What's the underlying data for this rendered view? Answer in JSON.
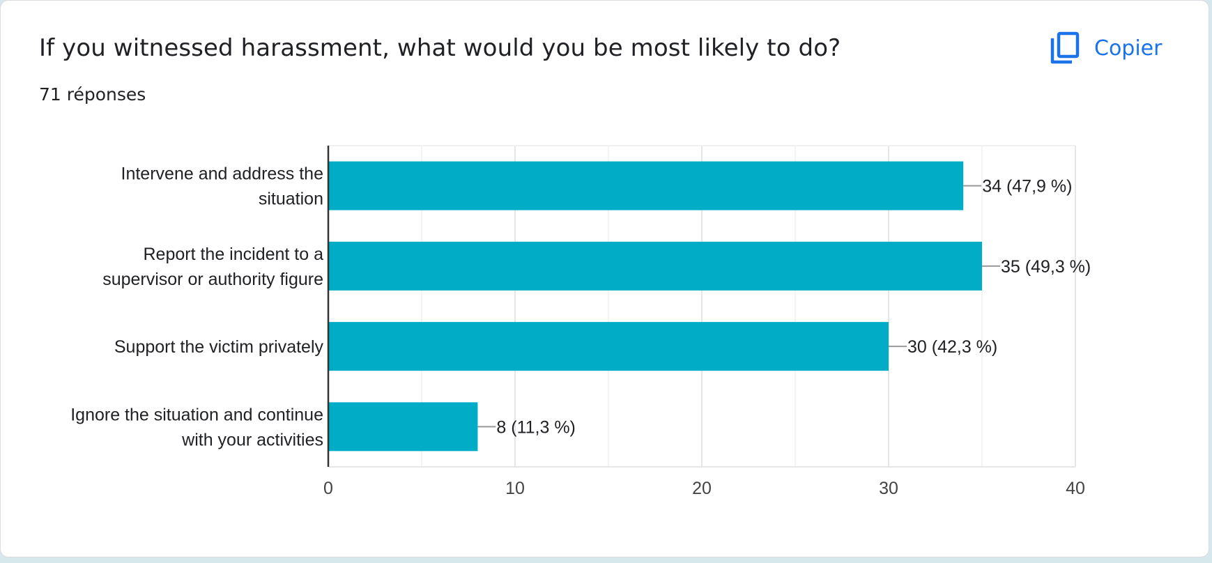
{
  "header": {
    "question": "If you witnessed harassment, what would you be most likely to do?",
    "responses": "71 réponses",
    "copy_label": "Copier",
    "copy_icon": "copy-icon"
  },
  "colors": {
    "bar": "#00acc6",
    "accent": "#1a73e8",
    "grid": "#ebebeb",
    "axis": "#333333",
    "text": "#202124"
  },
  "chart_data": {
    "type": "bar",
    "orientation": "horizontal",
    "categories": [
      [
        "Intervene and address the",
        "situation"
      ],
      [
        "Report the incident to a",
        "supervisor or authority figure"
      ],
      [
        "Support the victim privately"
      ],
      [
        "Ignore the situation and continue",
        "with your activities"
      ]
    ],
    "values": [
      34,
      35,
      30,
      8
    ],
    "data_labels": [
      "34 (47,9 %)",
      "35 (49,3 %)",
      "30 (42,3 %)",
      "8 (11,3 %)"
    ],
    "xlim": [
      0,
      40
    ],
    "x_ticks": [
      0,
      10,
      20,
      30,
      40
    ],
    "grid": true
  }
}
